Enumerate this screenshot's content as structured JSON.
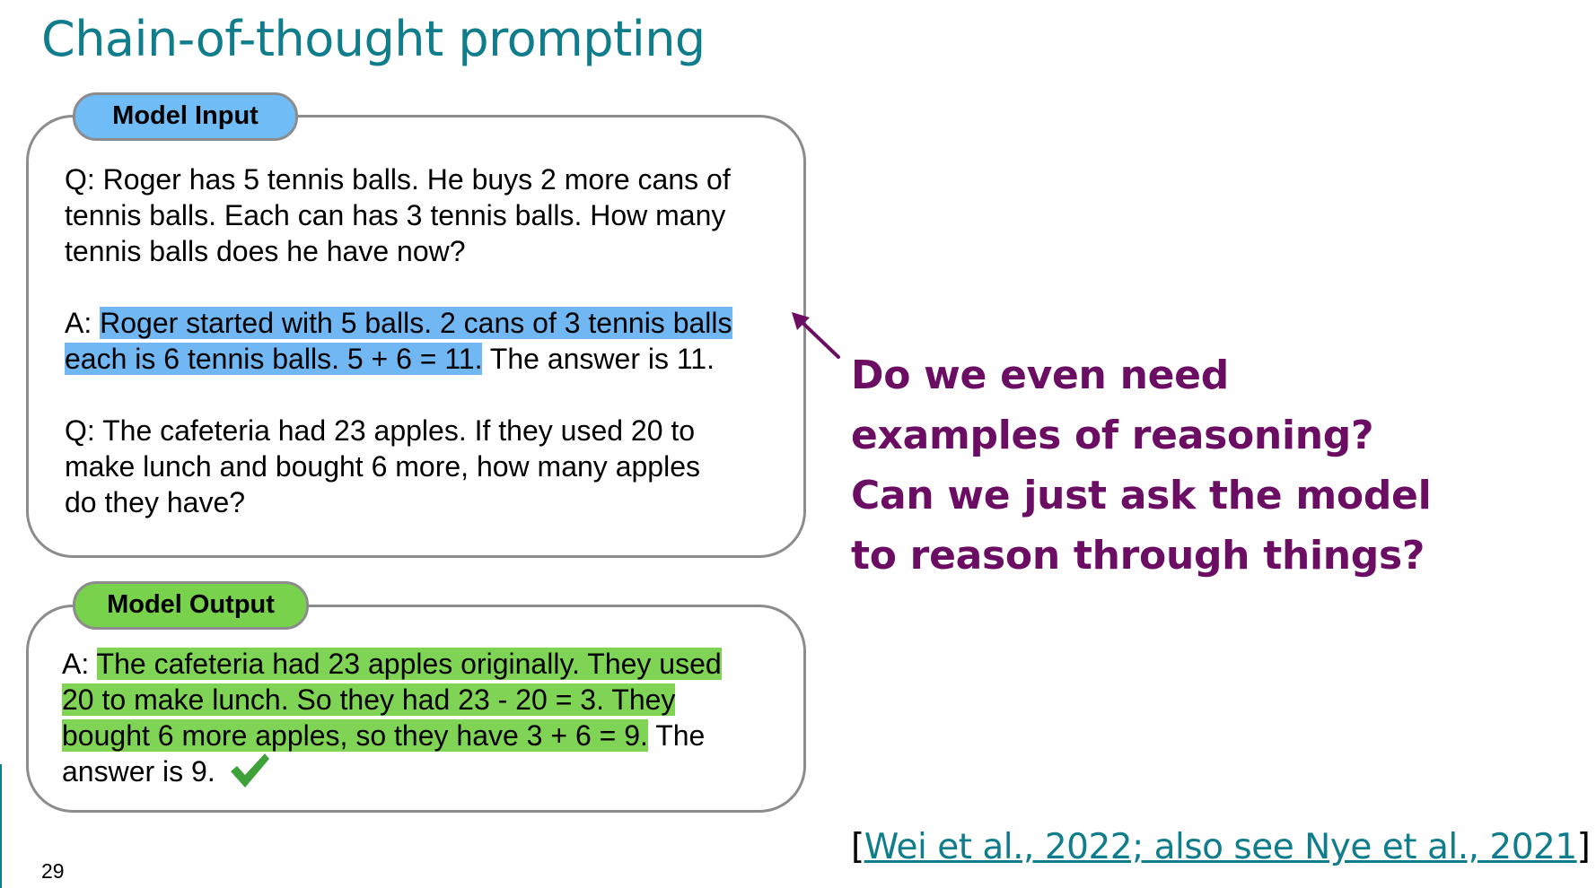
{
  "slide": {
    "title": "Chain-of-thought prompting",
    "page_number": "29"
  },
  "model_input": {
    "label": "Model Input",
    "q1_lines": [
      "Q: Roger has 5 tennis balls. He buys 2 more cans of",
      "tennis balls. Each can has 3 tennis balls. How many",
      "tennis balls does he have now?"
    ],
    "a1": {
      "prefix": "A: ",
      "line1_highlight": "Roger started with 5 balls. 2 cans of 3 tennis balls",
      "line2_highlight": "each is 6 tennis balls. 5 + 6 = 11.",
      "line2_rest": " The answer is 11."
    },
    "q2_lines": [
      "Q: The cafeteria had 23 apples. If they used 20 to",
      "make lunch and bought 6 more, how many apples",
      "do they have?"
    ],
    "highlight_color": "#70b7f4",
    "label_color": "#6fbcf6"
  },
  "model_output": {
    "label": "Model Output",
    "prefix": "A: ",
    "line1_highlight": "The cafeteria had 23 apples originally. They used",
    "line2_highlight": "20 to make lunch. So they had 23 - 20 = 3. They",
    "line3_highlight": "bought 6 more apples, so they have 3 + 6 = 9.",
    "line3_rest": " The",
    "line4": "answer is 9.",
    "check_icon": "checkmark-icon",
    "highlight_color": "#80d455",
    "label_color": "#79d24b"
  },
  "question": {
    "lines": [
      "Do we even need",
      "examples of reasoning?",
      "Can we just ask the model",
      "to reason through things?"
    ],
    "color": "#6b0d63"
  },
  "citation": {
    "open": "[",
    "link_text": "Wei et al., 2022; also see Nye et al., 2021",
    "close": "]"
  },
  "accent_color": "#0f7d8c"
}
